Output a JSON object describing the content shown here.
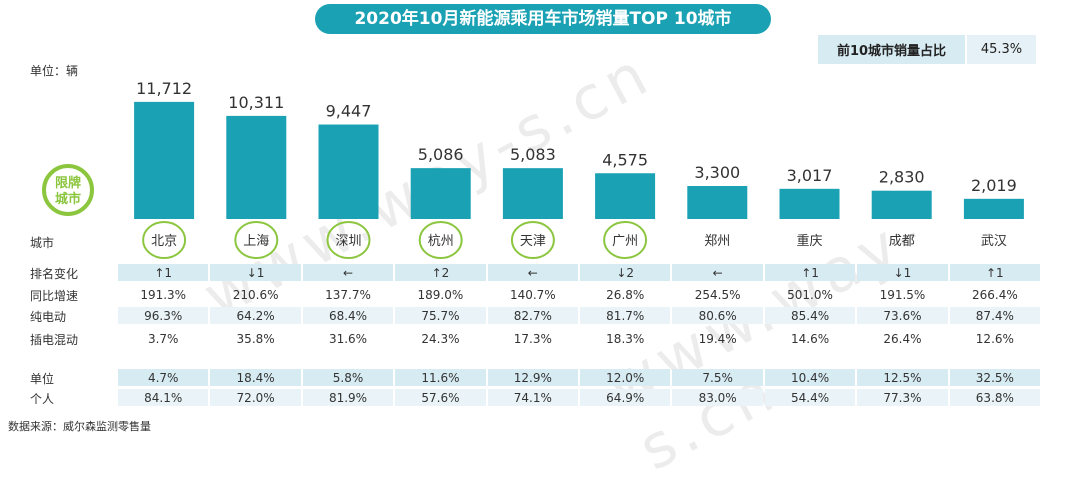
{
  "title": "2020年10月新能源乘用车市场销量TOP 10城市",
  "share": {
    "label": "前10城市销量占比",
    "value": "45.3%"
  },
  "unit_label": "单位：辆",
  "restricted_label_line1": "限牌",
  "restricted_label_line2": "城市",
  "source": "数据来源：威尔森监测零售量",
  "watermark": "www.way-s.cn",
  "colors": {
    "bar": "#1aa1b3",
    "banner": "#1aa1b3",
    "restricted_ring": "#8cc63f"
  },
  "chart_data": {
    "type": "bar",
    "categories": [
      "北京",
      "上海",
      "深圳",
      "杭州",
      "天津",
      "广州",
      "郑州",
      "重庆",
      "成都",
      "武汉"
    ],
    "values": [
      11712,
      10311,
      9447,
      5086,
      5083,
      4575,
      3300,
      3017,
      2830,
      2019
    ],
    "value_labels": [
      "11,712",
      "10,311",
      "9,447",
      "5,086",
      "5,083",
      "4,575",
      "3,300",
      "3,017",
      "2,830",
      "2,019"
    ],
    "restricted": [
      true,
      true,
      true,
      true,
      true,
      true,
      false,
      false,
      false,
      false
    ],
    "ylim": [
      0,
      12000
    ]
  },
  "table": {
    "city_row_label": "城市",
    "rows": [
      {
        "label": "排名变化",
        "values": [
          "↑1",
          "↓1",
          "←",
          "↑2",
          "←",
          "↓2",
          "←",
          "↑1",
          "↓1",
          "↑1"
        ]
      },
      {
        "label": "同比增速",
        "values": [
          "191.3%",
          "210.6%",
          "137.7%",
          "189.0%",
          "140.7%",
          "26.8%",
          "254.5%",
          "501.0%",
          "191.5%",
          "266.4%"
        ]
      },
      {
        "label": "纯电动",
        "values": [
          "96.3%",
          "64.2%",
          "68.4%",
          "75.7%",
          "82.7%",
          "81.7%",
          "80.6%",
          "85.4%",
          "73.6%",
          "87.4%"
        ]
      },
      {
        "label": "插电混动",
        "values": [
          "3.7%",
          "35.8%",
          "31.6%",
          "24.3%",
          "17.3%",
          "18.3%",
          "19.4%",
          "14.6%",
          "26.4%",
          "12.6%"
        ]
      },
      {
        "label": "单位",
        "values": [
          "4.7%",
          "18.4%",
          "5.8%",
          "11.6%",
          "12.9%",
          "12.0%",
          "7.5%",
          "10.4%",
          "12.5%",
          "32.5%"
        ]
      },
      {
        "label": "个人",
        "values": [
          "84.1%",
          "72.0%",
          "81.9%",
          "57.6%",
          "74.1%",
          "64.9%",
          "83.0%",
          "54.4%",
          "77.3%",
          "63.8%"
        ]
      }
    ]
  }
}
